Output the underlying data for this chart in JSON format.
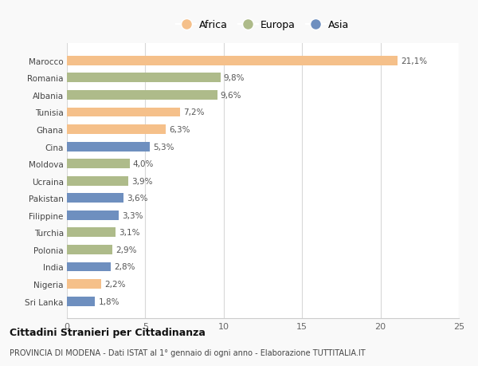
{
  "countries": [
    "Marocco",
    "Romania",
    "Albania",
    "Tunisia",
    "Ghana",
    "Cina",
    "Moldova",
    "Ucraina",
    "Pakistan",
    "Filippine",
    "Turchia",
    "Polonia",
    "India",
    "Nigeria",
    "Sri Lanka"
  ],
  "values": [
    21.1,
    9.8,
    9.6,
    7.2,
    6.3,
    5.3,
    4.0,
    3.9,
    3.6,
    3.3,
    3.1,
    2.9,
    2.8,
    2.2,
    1.8
  ],
  "labels": [
    "21,1%",
    "9,8%",
    "9,6%",
    "7,2%",
    "6,3%",
    "5,3%",
    "4,0%",
    "3,9%",
    "3,6%",
    "3,3%",
    "3,1%",
    "2,9%",
    "2,8%",
    "2,2%",
    "1,8%"
  ],
  "continents": [
    "Africa",
    "Europa",
    "Europa",
    "Africa",
    "Africa",
    "Asia",
    "Europa",
    "Europa",
    "Asia",
    "Asia",
    "Europa",
    "Europa",
    "Asia",
    "Africa",
    "Asia"
  ],
  "colors": {
    "Africa": "#F5C08A",
    "Europa": "#AEBB8A",
    "Asia": "#6E8FBF"
  },
  "legend_labels": [
    "Africa",
    "Europa",
    "Asia"
  ],
  "legend_colors": [
    "#F5C08A",
    "#AEBB8A",
    "#6E8FBF"
  ],
  "xlim": [
    0,
    25
  ],
  "xticks": [
    0,
    5,
    10,
    15,
    20,
    25
  ],
  "title": "Cittadini Stranieri per Cittadinanza",
  "subtitle": "PROVINCIA DI MODENA - Dati ISTAT al 1° gennaio di ogni anno - Elaborazione TUTTITALIA.IT",
  "background_color": "#f9f9f9",
  "plot_bg_color": "#ffffff"
}
